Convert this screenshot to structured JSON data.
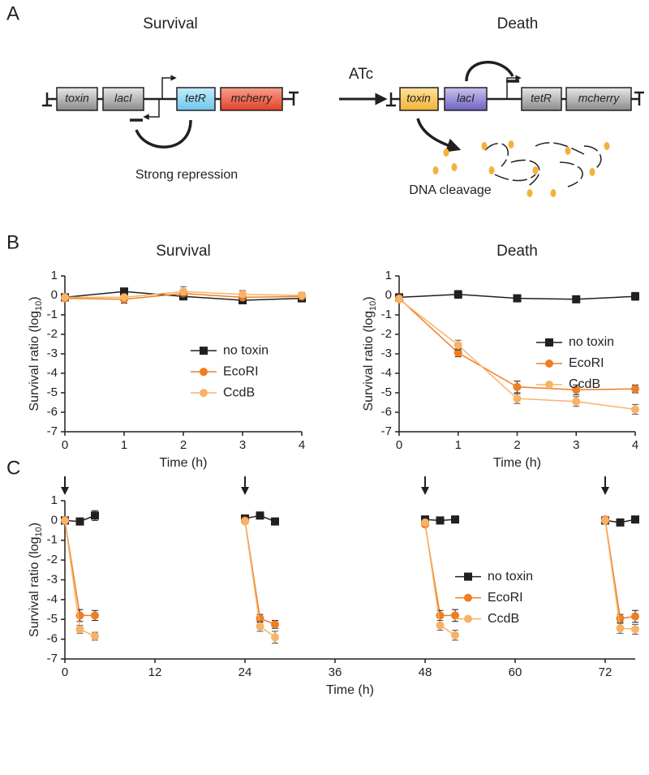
{
  "panel_labels": [
    "A",
    "B",
    "C"
  ],
  "diagram": {
    "survival_title": "Survival",
    "death_title": "Death",
    "arrow_label": "ATc",
    "survival_genes": [
      "toxin",
      "lacI",
      "tetR",
      "mcherry"
    ],
    "death_genes": [
      "toxin",
      "lacI",
      "tetR",
      "mcherry"
    ],
    "survival_note": "Strong repression",
    "death_note": "DNA cleavage"
  },
  "chart_data": [
    {
      "type": "line",
      "title": "Survival",
      "x_label": "Time (h)",
      "y_label": {
        "text": "Survival ratio (log",
        "sub": "10",
        "close": ")"
      },
      "x": [
        0,
        1,
        2,
        3,
        4
      ],
      "xlim": [
        0,
        4
      ],
      "xticks": [
        0,
        1,
        2,
        3,
        4
      ],
      "ylim": [
        -7,
        1
      ],
      "yticks": [
        -7,
        -6,
        -5,
        -4,
        -3,
        -2,
        -1,
        0,
        1
      ],
      "legend_loc": "center right",
      "series": [
        {
          "name": "no toxin",
          "color": "#231f20",
          "marker": "square",
          "values": [
            -0.1,
            0.2,
            -0.05,
            -0.25,
            -0.15
          ],
          "errors": [
            0.1,
            0.15,
            0.1,
            0.15,
            0.1
          ]
        },
        {
          "name": "EcoRI",
          "color": "#ef7d22",
          "marker": "circle",
          "values": [
            -0.15,
            -0.2,
            0.1,
            -0.1,
            -0.05
          ],
          "errors": [
            0.1,
            0.2,
            0.2,
            0.2,
            0.15
          ]
        },
        {
          "name": "CcdB",
          "color": "#f9b266",
          "marker": "circle",
          "values": [
            -0.1,
            -0.1,
            0.2,
            0.05,
            0
          ],
          "errors": [
            0.1,
            0.15,
            0.25,
            0.2,
            0.15
          ]
        }
      ]
    },
    {
      "type": "line",
      "title": "Death",
      "x_label": "Time (h)",
      "y_label": {
        "text": "Survival ratio (log",
        "sub": "10",
        "close": ")"
      },
      "x": [
        0,
        1,
        2,
        3,
        4
      ],
      "xlim": [
        0,
        4
      ],
      "xticks": [
        0,
        1,
        2,
        3,
        4
      ],
      "ylim": [
        -7,
        1
      ],
      "yticks": [
        -7,
        -6,
        -5,
        -4,
        -3,
        -2,
        -1,
        0,
        1
      ],
      "legend_loc": "lower right",
      "series": [
        {
          "name": "no toxin",
          "color": "#231f20",
          "marker": "square",
          "values": [
            -0.1,
            0.05,
            -0.15,
            -0.2,
            -0.05
          ],
          "errors": [
            0.1,
            0.2,
            0.1,
            0.1,
            0.2
          ]
        },
        {
          "name": "EcoRI",
          "color": "#ef7d22",
          "marker": "circle",
          "values": [
            -0.15,
            -2.95,
            -4.7,
            -4.85,
            -4.8
          ],
          "errors": [
            0.1,
            0.2,
            0.3,
            0.25,
            0.2
          ]
        },
        {
          "name": "CcdB",
          "color": "#f9b266",
          "marker": "circle",
          "values": [
            -0.2,
            -2.55,
            -5.3,
            -5.45,
            -5.85
          ],
          "errors": [
            0.1,
            0.25,
            0.25,
            0.25,
            0.25
          ]
        }
      ]
    },
    {
      "type": "line",
      "x_label": "Time (h)",
      "y_label": {
        "text": "Survival ratio (log",
        "sub": "10",
        "close": ")"
      },
      "x": [
        0,
        2,
        4,
        null,
        24,
        26,
        28,
        null,
        48,
        50,
        52,
        null,
        72,
        74,
        76
      ],
      "xlim": [
        0,
        76
      ],
      "xticks": [
        0,
        12,
        24,
        36,
        48,
        60,
        72
      ],
      "ylim": [
        -7,
        1
      ],
      "yticks": [
        -7,
        -6,
        -5,
        -4,
        -3,
        -2,
        -1,
        0,
        1
      ],
      "legend_loc": "center right",
      "arrows": [
        0,
        24,
        48,
        72
      ],
      "series": [
        {
          "name": "no toxin",
          "color": "#231f20",
          "marker": "square",
          "values": [
            0,
            -0.05,
            0.25,
            null,
            0.1,
            0.25,
            -0.05,
            null,
            0.05,
            0,
            0.05,
            null,
            0,
            -0.1,
            0.05
          ],
          "errors": [
            0.1,
            0.1,
            0.25,
            null,
            0.1,
            0.1,
            0.1,
            null,
            0.1,
            0.1,
            0.1,
            null,
            0.1,
            0.1,
            0.1
          ]
        },
        {
          "name": "EcoRI",
          "color": "#ef7d22",
          "marker": "circle",
          "values": [
            0,
            -4.8,
            -4.8,
            null,
            0,
            -4.95,
            -5.25,
            null,
            -0.2,
            -4.8,
            -4.8,
            null,
            0.05,
            -4.95,
            -4.85
          ],
          "errors": [
            0.1,
            0.3,
            0.25,
            null,
            0.1,
            0.2,
            0.2,
            null,
            0.1,
            0.25,
            0.3,
            null,
            0.1,
            0.2,
            0.3
          ]
        },
        {
          "name": "CcdB",
          "color": "#f9b266",
          "marker": "circle",
          "values": [
            0,
            -5.5,
            -5.85,
            null,
            -0.05,
            -5.35,
            -5.9,
            null,
            -0.1,
            -5.3,
            -5.8,
            null,
            0,
            -5.45,
            -5.5
          ],
          "errors": [
            0.1,
            0.2,
            0.2,
            null,
            0.1,
            0.25,
            0.3,
            null,
            0.1,
            0.25,
            0.25,
            null,
            0.1,
            0.25,
            0.25
          ]
        }
      ]
    }
  ]
}
